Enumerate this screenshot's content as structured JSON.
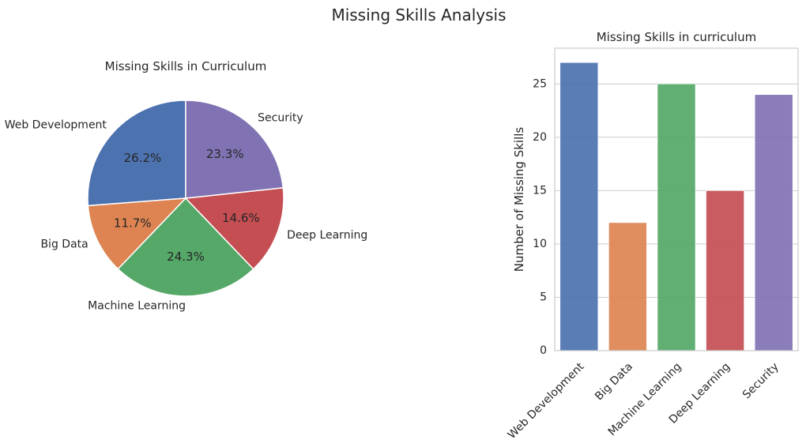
{
  "figure": {
    "suptitle": "Missing Skills Analysis"
  },
  "colors": {
    "web_development": "#4c72b0",
    "big_data": "#dd8452",
    "machine_learning": "#55a868",
    "deep_learning": "#c44e52",
    "security": "#8172b3",
    "text": "#262626",
    "grid": "#cccccc",
    "spine": "#cccccc"
  },
  "chart_data": [
    {
      "type": "pie",
      "title": "Missing Skills in Curriculum",
      "categories": [
        "Web Development",
        "Big Data",
        "Machine Learning",
        "Deep Learning",
        "Security"
      ],
      "values": [
        27,
        12,
        25,
        15,
        24
      ],
      "percent_labels": [
        "26.2%",
        "11.7%",
        "24.3%",
        "14.6%",
        "23.3%"
      ],
      "start_angle_deg": 90,
      "direction": "counterclockwise"
    },
    {
      "type": "bar",
      "title": "Missing Skills in curriculum",
      "categories": [
        "Web Development",
        "Big Data",
        "Machine Learning",
        "Deep Learning",
        "Security"
      ],
      "values": [
        27,
        12,
        25,
        15,
        24
      ],
      "xlabel": "",
      "ylabel": "Number of Missing Skills",
      "ylim": [
        0,
        28.35
      ],
      "yticks": [
        0,
        5,
        10,
        15,
        20,
        25
      ],
      "xtick_rotation_deg": 45,
      "grid": "horizontal"
    }
  ]
}
